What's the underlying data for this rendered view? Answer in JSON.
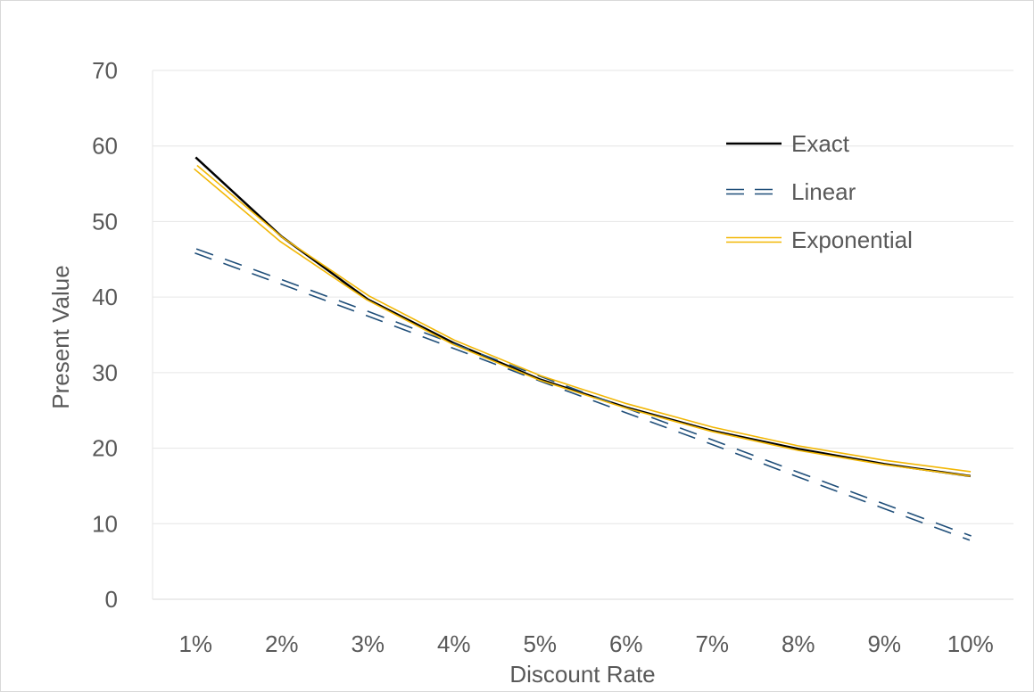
{
  "chart_data": {
    "type": "line",
    "xlabel": "Discount Rate",
    "ylabel": "Present Value",
    "categories": [
      "1%",
      "2%",
      "3%",
      "4%",
      "5%",
      "6%",
      "7%",
      "8%",
      "9%",
      "10%"
    ],
    "ylim": [
      0,
      70
    ],
    "yticks": [
      "0",
      "10",
      "20",
      "30",
      "40",
      "50",
      "60",
      "70"
    ],
    "grid": true,
    "legend_position": "top-right",
    "series": [
      {
        "name": "Exact",
        "style": "solid",
        "color": "#000000",
        "values": [
          58.5,
          48.0,
          39.7,
          33.9,
          29.1,
          25.4,
          22.3,
          19.9,
          17.9,
          16.3
        ]
      },
      {
        "name": "Linear",
        "style": "double-dashed",
        "color": "#1f4e79",
        "values": [
          46.1,
          42.0,
          37.8,
          33.5,
          29.2,
          25.0,
          20.8,
          16.5,
          12.3,
          8.1
        ]
      },
      {
        "name": "Exponential",
        "style": "double-solid",
        "color": "#f2b705",
        "values": [
          57.2,
          47.6,
          39.9,
          34.0,
          29.3,
          25.6,
          22.5,
          20.0,
          18.1,
          16.6
        ]
      }
    ]
  }
}
